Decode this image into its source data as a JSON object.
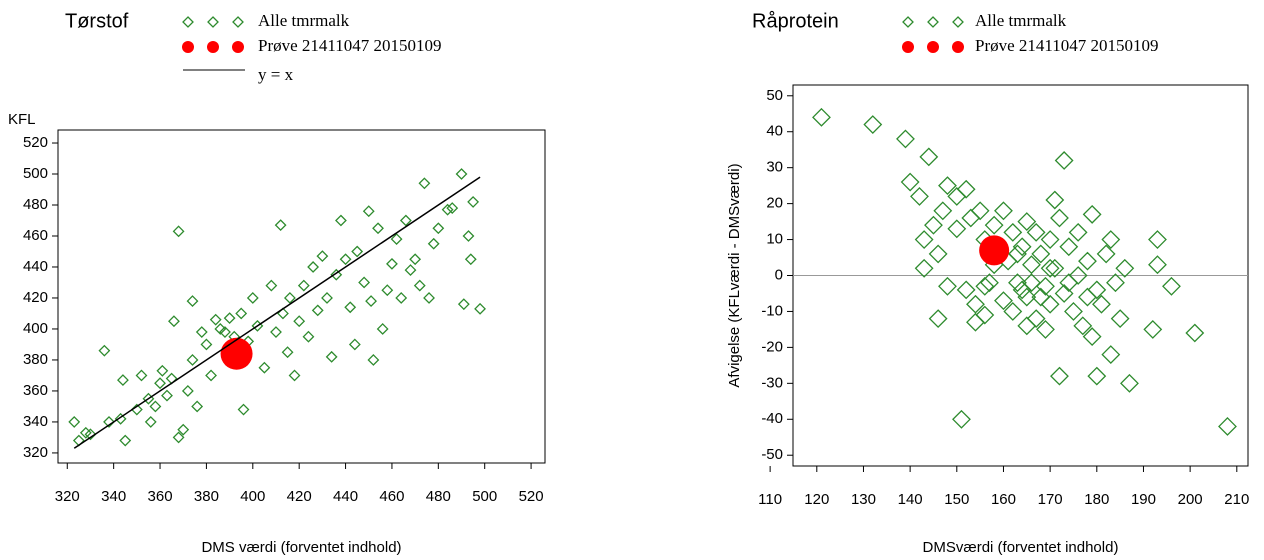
{
  "chart_data": [
    {
      "type": "scatter",
      "title": "Tørstof",
      "xlabel": "DMS værdi (forventet indhold)",
      "ylabel": "KFL",
      "xlim": [
        316,
        526
      ],
      "ylim": [
        313.5,
        528.4
      ],
      "xticks": [
        320,
        340,
        360,
        380,
        400,
        420,
        440,
        460,
        480,
        500,
        520
      ],
      "yticks": [
        320,
        340,
        360,
        380,
        400,
        420,
        440,
        460,
        480,
        500,
        520
      ],
      "series": [
        {
          "name": "Alle tmrmalk",
          "color": "#2e8b2e",
          "mode": "markers",
          "x": [
            323,
            325,
            328,
            330,
            336,
            338,
            343,
            344,
            345,
            350,
            352,
            355,
            356,
            358,
            360,
            361,
            363,
            365,
            366,
            368,
            368,
            370,
            372,
            374,
            374,
            376,
            378,
            380,
            382,
            384,
            386,
            388,
            390,
            392,
            395,
            396,
            398,
            400,
            402,
            405,
            408,
            410,
            412,
            413,
            415,
            416,
            418,
            420,
            422,
            424,
            426,
            428,
            430,
            432,
            434,
            436,
            438,
            440,
            442,
            444,
            445,
            448,
            450,
            451,
            452,
            454,
            456,
            458,
            460,
            462,
            464,
            466,
            468,
            470,
            472,
            474,
            476,
            478,
            480,
            484,
            486,
            490,
            491,
            493,
            494,
            495,
            498
          ],
          "values": [
            340,
            328,
            333,
            332,
            386,
            340,
            342,
            367,
            328,
            348,
            370,
            355,
            340,
            350,
            365,
            373,
            357,
            368,
            405,
            330,
            463,
            335,
            360,
            380,
            418,
            350,
            398,
            390,
            370,
            406,
            400,
            398,
            407,
            395,
            410,
            348,
            392,
            420,
            402,
            375,
            428,
            398,
            467,
            410,
            385,
            420,
            370,
            405,
            428,
            395,
            440,
            412,
            447,
            420,
            382,
            435,
            470,
            445,
            414,
            390,
            450,
            430,
            476,
            418,
            380,
            465,
            400,
            425,
            442,
            458,
            420,
            470,
            438,
            445,
            428,
            494,
            420,
            455,
            465,
            477,
            478,
            500,
            416,
            460,
            445,
            482,
            413
          ]
        },
        {
          "name": "Prøve 21411047 20150109",
          "color": "#ff0000",
          "mode": "dot",
          "x": [
            393
          ],
          "values": [
            384
          ]
        },
        {
          "name": "y = x",
          "color": "#000000",
          "mode": "line",
          "x": [
            323,
            498
          ],
          "values": [
            323,
            498
          ]
        }
      ]
    },
    {
      "type": "scatter",
      "title": "Råprotein",
      "xlabel": "DMSværdi (forventet indhold)",
      "ylabel": "Afvigelse (KFLværdi - DMSværdi)",
      "xlim": [
        114.9,
        212.4
      ],
      "ylim": [
        -53,
        53
      ],
      "xticks": [
        110,
        120,
        130,
        140,
        150,
        160,
        170,
        180,
        190,
        200,
        210
      ],
      "yticks": [
        -50,
        -40,
        -30,
        -20,
        -10,
        0,
        10,
        20,
        30,
        40,
        50
      ],
      "reference_line": 0,
      "series": [
        {
          "name": "Alle tmrmalk",
          "color": "#2e8b2e",
          "mode": "markers",
          "x": [
            121,
            132,
            139,
            140,
            142,
            144,
            143,
            148,
            150,
            152,
            147,
            145,
            143,
            146,
            150,
            153,
            155,
            156,
            152,
            154,
            151,
            154,
            157,
            158,
            160,
            162,
            161,
            163,
            164,
            165,
            166,
            165,
            167,
            168,
            169,
            170,
            170,
            171,
            172,
            171,
            173,
            173,
            174,
            175,
            176,
            177,
            178,
            179,
            179,
            180,
            181,
            182,
            183,
            183,
            184,
            185,
            186,
            187,
            172,
            165,
            160,
            156,
            158,
            162,
            167,
            169,
            174,
            176,
            178,
            180,
            168,
            166,
            170,
            164,
            163,
            193,
            193,
            192,
            196,
            201,
            208,
            148,
            146,
            156
          ],
          "values": [
            44,
            42,
            38,
            26,
            22,
            33,
            2,
            25,
            22,
            24,
            18,
            14,
            10,
            6,
            13,
            16,
            18,
            10,
            -4,
            -13,
            -40,
            -8,
            -2,
            14,
            18,
            12,
            4,
            -2,
            8,
            15,
            3,
            -6,
            -12,
            6,
            -3,
            10,
            -8,
            21,
            16,
            2,
            32,
            -5,
            8,
            -10,
            0,
            -14,
            4,
            17,
            -17,
            -28,
            -8,
            6,
            -22,
            10,
            -2,
            -12,
            2,
            -30,
            -28,
            -14,
            -7,
            -11,
            3,
            -10,
            12,
            -15,
            -2,
            12,
            -6,
            -4,
            -6,
            -2,
            2,
            -4,
            6,
            10,
            3,
            -15,
            -3,
            -16,
            -42,
            -3,
            -12,
            -3
          ]
        },
        {
          "name": "Prøve 21411047 20150109",
          "color": "#ff0000",
          "mode": "dot",
          "x": [
            158
          ],
          "values": [
            7
          ]
        }
      ]
    }
  ]
}
